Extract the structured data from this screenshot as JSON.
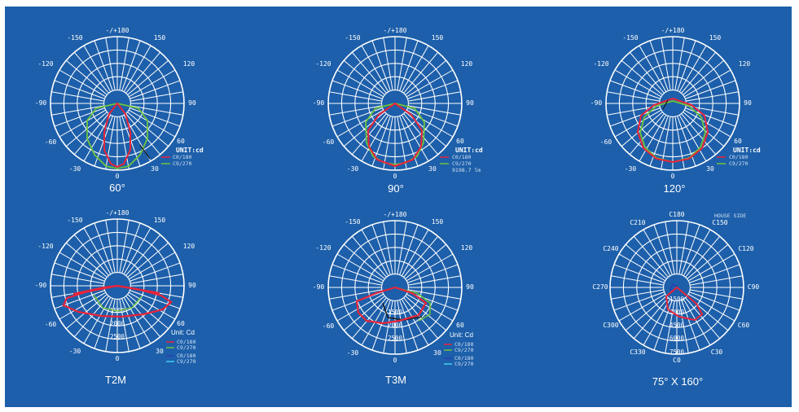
{
  "colors": {
    "background": "#1d5faa",
    "grid": "#ffffff",
    "c0_180": "#e8243a",
    "c90_270": "#6fc43d",
    "c0_180_alt": "#2a3fb0",
    "c90_270_alt": "#3fd0f0"
  },
  "angle_ticks": {
    "top": "-/+180",
    "upper_left": "-150",
    "upper_right": "150",
    "mid_upper_left": "-120",
    "mid_upper_right": "120",
    "left": "-90",
    "right": "90",
    "mid_lower_left": "-60",
    "mid_lower_right": "60",
    "lower_left": "-30",
    "lower_right": "30",
    "bottom": "0"
  },
  "diagrams": [
    {
      "caption": "60°",
      "unit": "UNIT:cd",
      "legend": [
        "C0/180",
        "C9/270"
      ],
      "extra": "",
      "ring_labels": []
    },
    {
      "caption": "90°",
      "unit": "UNIT:cd",
      "legend": [
        "C0/180",
        "C9/270"
      ],
      "extra": "9198.7 lm",
      "ring_labels": []
    },
    {
      "caption": "120°",
      "unit": "UNIT:cd",
      "legend": [
        "C0/180",
        "C9/270"
      ],
      "extra": "",
      "ring_labels": []
    },
    {
      "caption": "T2M",
      "unit": "Unit: Cd",
      "legend": [
        "C0/180",
        "C9/270",
        "C0/180",
        "C9/270"
      ],
      "extra": "",
      "ring_labels": [
        "1500",
        "2000",
        "2500"
      ]
    },
    {
      "caption": "T3M",
      "unit": "Unit: Cd",
      "legend": [
        "C0/180",
        "C9/270",
        "C0/180",
        "C9/270"
      ],
      "extra": "",
      "ring_labels": [
        "1500",
        "2000",
        "2500"
      ]
    },
    {
      "caption": "75° X 160°",
      "unit": "HOUSE SIDE",
      "legend": [],
      "extra": "",
      "ring_labels": [
        "1500",
        "3000",
        "4500",
        "6000",
        "7500"
      ],
      "c_ticks": {
        "c180": "C180",
        "c150": "C150",
        "c120": "C120",
        "c90": "C90",
        "c60": "C60",
        "c30": "C30",
        "c0": "C0",
        "c330": "C330",
        "c300": "C300",
        "c270": "C270",
        "c240": "C240",
        "c210": "C210"
      }
    }
  ]
}
